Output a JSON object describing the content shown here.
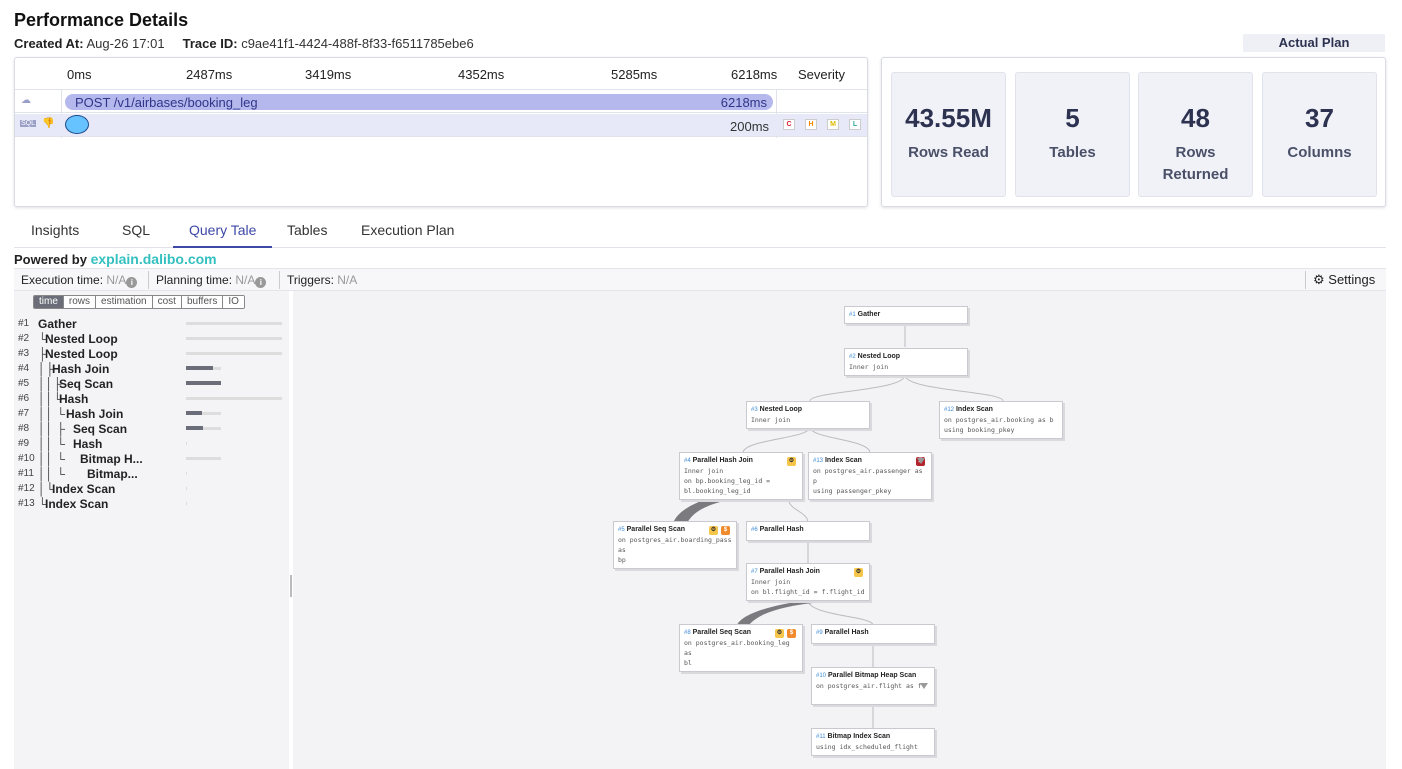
{
  "header": {
    "title": "Performance Details",
    "created_label": "Created At:",
    "created_value": "Aug-26 17:01",
    "trace_label": "Trace ID:",
    "trace_value": "c9ae41f1-4424-488f-8f33-f6511785ebe6",
    "plan_button": "Actual Plan"
  },
  "timeline": {
    "ticks": [
      "0ms",
      "2487ms",
      "3419ms",
      "4352ms",
      "5285ms",
      "6218ms"
    ],
    "severity_label": "Severity",
    "request": {
      "label": "POST /v1/airbases/booking_leg",
      "duration": "6218ms"
    },
    "query": {
      "duration": "200ms",
      "severity_badges": [
        "C",
        "H",
        "M",
        "L"
      ]
    },
    "colors": {
      "request_bar": "#b4b8ec",
      "query_dot": "#67c3ff"
    }
  },
  "stats": [
    {
      "value": "43.55M",
      "label": "Rows Read"
    },
    {
      "value": "5",
      "label": "Tables"
    },
    {
      "value": "48",
      "label": "Rows Returned"
    },
    {
      "value": "37",
      "label": "Columns"
    }
  ],
  "tabs": [
    "Insights",
    "SQL",
    "Query Tale",
    "Tables",
    "Execution Plan"
  ],
  "active_tab": "Query Tale",
  "powered": {
    "prefix": "Powered by",
    "link": "explain.dalibo.com"
  },
  "exec_bar": {
    "execution_label": "Execution time:",
    "execution_value": "N/A",
    "planning_label": "Planning time:",
    "planning_value": "N/A",
    "triggers_label": "Triggers:",
    "triggers_value": "N/A",
    "settings_label": "Settings"
  },
  "metric_chips": [
    "time",
    "rows",
    "estimation",
    "cost",
    "buffers",
    "IO"
  ],
  "active_chip": "time",
  "tree": [
    {
      "num": "#1",
      "label": "Gather",
      "prefix": "",
      "pct": 0.0
    },
    {
      "num": "#2",
      "label": "Nested Loop",
      "prefix": "└",
      "pct": 0.0
    },
    {
      "num": "#3",
      "label": "Nested Loop",
      "prefix": "├",
      "pct": 0.0
    },
    {
      "num": "#4",
      "label": "Hash Join",
      "prefix": "│├",
      "pct": 0.28
    },
    {
      "num": "#5",
      "label": "Seq Scan",
      "prefix": "││├",
      "pct": 0.36
    },
    {
      "num": "#6",
      "label": "Hash",
      "prefix": "││└",
      "pct": 0.0
    },
    {
      "num": "#7",
      "label": "Hash Join",
      "prefix": "││ └",
      "pct": 0.17
    },
    {
      "num": "#8",
      "label": "Seq Scan",
      "prefix": "││  ├",
      "pct": 0.18
    },
    {
      "num": "#9",
      "label": "Hash",
      "prefix": "││  └",
      "pct": 0.0
    },
    {
      "num": "#10",
      "label": "Bitmap H...",
      "prefix": "││   └",
      "pct": 0.0
    },
    {
      "num": "#11",
      "label": "Bitmap...",
      "prefix": "││    └",
      "pct": 0.0
    },
    {
      "num": "#12",
      "label": "Index Scan",
      "prefix": "│└",
      "pct": 0.0
    },
    {
      "num": "#13",
      "label": "Index Scan",
      "prefix": "└",
      "pct": 0.0
    }
  ],
  "plan_nodes": [
    {
      "id": "#1",
      "title": "Gather",
      "lines": []
    },
    {
      "id": "#2",
      "title": "Nested Loop",
      "lines": [
        "Inner join"
      ]
    },
    {
      "id": "#3",
      "title": "Nested Loop",
      "lines": [
        "Inner join"
      ]
    },
    {
      "id": "#12",
      "title": "Index Scan",
      "lines": [
        "on postgres_air.booking as b",
        "using booking_pkey"
      ]
    },
    {
      "id": "#4",
      "title": "Parallel Hash Join",
      "lines": [
        "Inner join",
        "on bp.booking_leg_id =",
        "bl.booking_leg_id"
      ]
    },
    {
      "id": "#13",
      "title": "Index Scan",
      "lines": [
        "on postgres_air.passenger as p",
        "using passenger_pkey"
      ]
    },
    {
      "id": "#5",
      "title": "Parallel Seq Scan",
      "lines": [
        "on postgres_air.boarding_pass as",
        "bp"
      ]
    },
    {
      "id": "#6",
      "title": "Parallel Hash",
      "lines": []
    },
    {
      "id": "#7",
      "title": "Parallel Hash Join",
      "lines": [
        "Inner join",
        "on bl.flight_id = f.flight_id"
      ]
    },
    {
      "id": "#8",
      "title": "Parallel Seq Scan",
      "lines": [
        "on postgres_air.booking_leg as",
        "bl"
      ]
    },
    {
      "id": "#9",
      "title": "Parallel Hash",
      "lines": []
    },
    {
      "id": "#10",
      "title": "Parallel Bitmap Heap Scan",
      "lines": [
        "on postgres_air.flight as f"
      ]
    },
    {
      "id": "#11",
      "title": "Bitmap Index Scan",
      "lines": [
        "using idx_scheduled_flight"
      ]
    }
  ]
}
